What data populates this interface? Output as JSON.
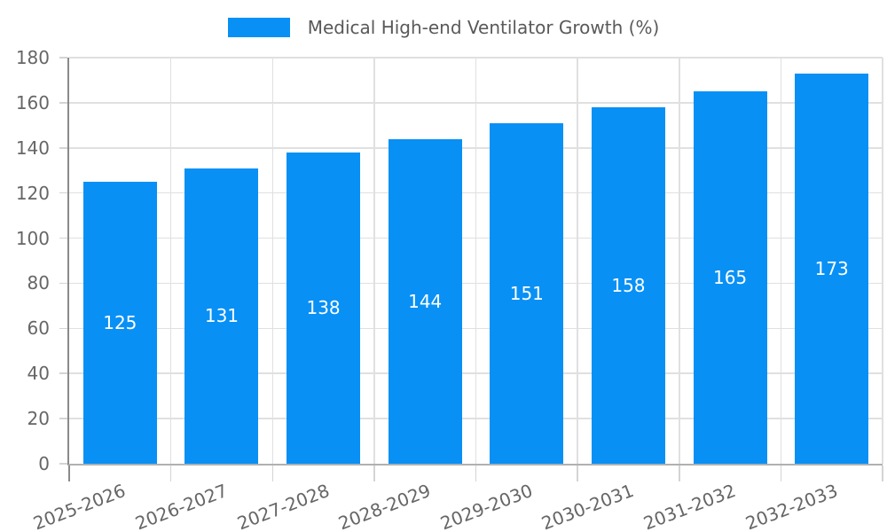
{
  "chart_data": {
    "type": "bar",
    "title": "Medical High-end Ventilator Growth (%)",
    "categories": [
      "2025-2026",
      "2026-2027",
      "2027-2028",
      "2028-2029",
      "2029-2030",
      "2030-2031",
      "2031-2032",
      "2032-2033"
    ],
    "values": [
      125,
      131,
      138,
      144,
      151,
      158,
      165,
      173
    ],
    "xlabel": "",
    "ylabel": "",
    "ylim": [
      0,
      180
    ],
    "yticks": [
      0,
      20,
      40,
      60,
      80,
      100,
      120,
      140,
      160,
      180
    ],
    "grid": true,
    "legend_position": "top-center",
    "xtick_rotation_deg": -21,
    "bar_color": "#0890f5",
    "value_label_color": "#ffffff",
    "grid_color": "#e0e0e0",
    "axis_text_color": "#666666",
    "title_color": "#595959"
  }
}
